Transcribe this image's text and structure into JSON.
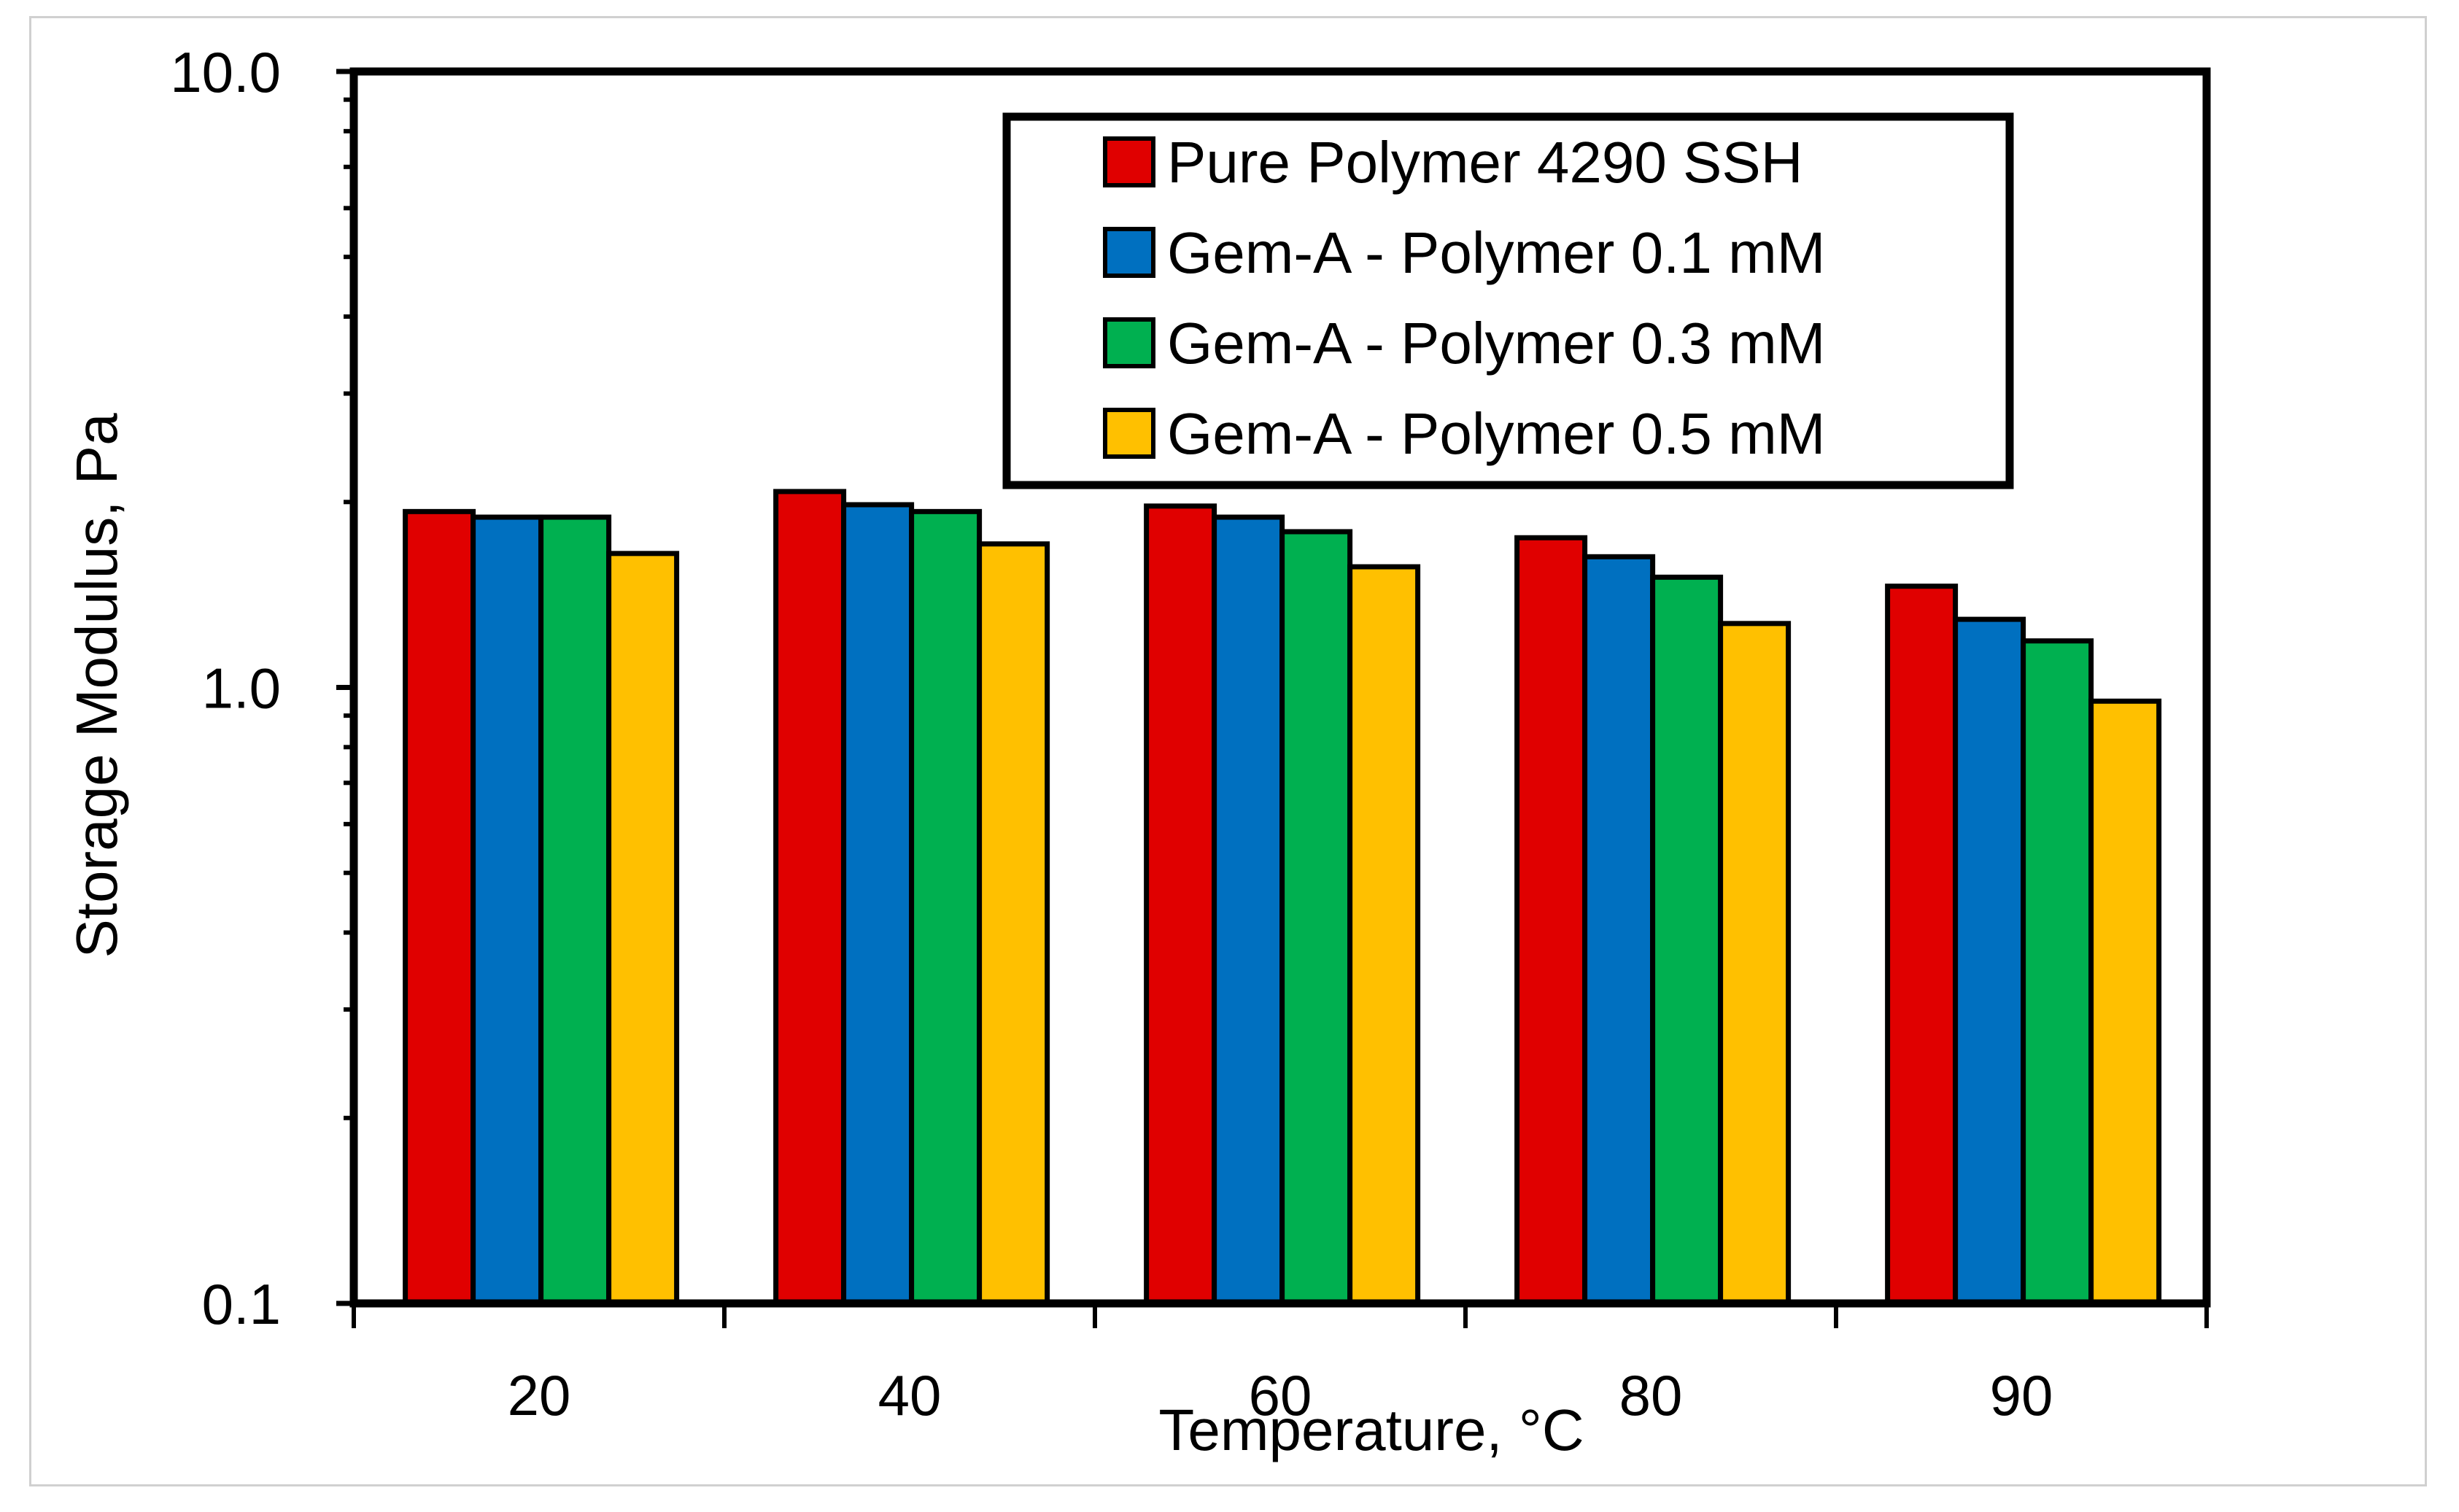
{
  "chart_data": {
    "type": "bar",
    "title": "",
    "xlabel": "Temperature, °C",
    "ylabel": "Storage Modulus, Pa",
    "yscale": "log",
    "ylim": [
      0.1,
      10.0
    ],
    "ytick_labels": [
      "0.1",
      "1.0",
      "10.0"
    ],
    "yticks": [
      0.1,
      1.0,
      10.0
    ],
    "categories": [
      "20",
      "40",
      "60",
      "80",
      "90"
    ],
    "legend_position": "top-right",
    "series": [
      {
        "name": "Pure Polymer 4290 SSH",
        "color": "#e00000",
        "values": [
          1.93,
          2.08,
          1.97,
          1.75,
          1.46
        ]
      },
      {
        "name": "Gem-A - Polymer 0.1 mM",
        "color": "#0070c0",
        "values": [
          1.89,
          1.98,
          1.89,
          1.63,
          1.29
        ]
      },
      {
        "name": "Gem-A - Polymer 0.3 mM",
        "color": "#00b050",
        "values": [
          1.89,
          1.93,
          1.79,
          1.51,
          1.19
        ]
      },
      {
        "name": "Gem-A - Polymer 0.5 mM",
        "color": "#ffc000",
        "values": [
          1.65,
          1.71,
          1.57,
          1.27,
          0.95
        ]
      }
    ]
  }
}
